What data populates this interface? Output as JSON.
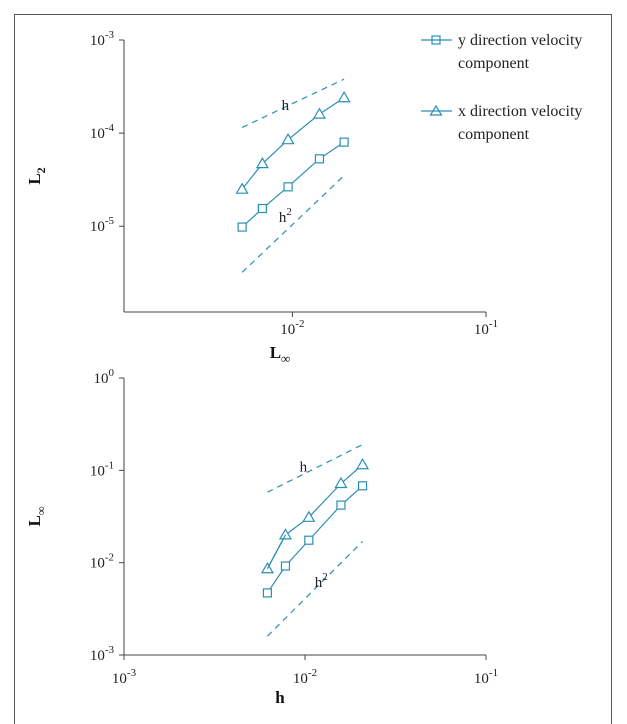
{
  "colors": {
    "series": "#2b8fb3",
    "axis": "#444444",
    "text": "#222222"
  },
  "legend": [
    {
      "marker": "square",
      "line1": "y direction velocity",
      "line2": "component"
    },
    {
      "marker": "triangle",
      "line1": "x direction velocity",
      "line2": "component"
    }
  ],
  "chart_data": [
    {
      "type": "line",
      "log_x": true,
      "log_y": true,
      "xlim": [
        0.00135,
        0.1
      ],
      "ylim": [
        1.2e-06,
        0.001
      ],
      "ylabel": "L",
      "ylabel_sub": "2",
      "xlabel": "L",
      "xlabel_sub": "∞",
      "yticks": [
        {
          "value": 0.001,
          "base": "10",
          "exp": "-3"
        },
        {
          "value": 0.0001,
          "base": "10",
          "exp": "-4"
        },
        {
          "value": 1e-05,
          "base": "10",
          "exp": "-5"
        }
      ],
      "xticks": [
        {
          "value": 0.01,
          "base": "10",
          "exp": "-2"
        },
        {
          "value": 0.1,
          "base": "10",
          "exp": "-1"
        }
      ],
      "series": [
        {
          "marker": "triangle",
          "x": [
            0.0055,
            0.007,
            0.0095,
            0.0138,
            0.0185
          ],
          "y": [
            2.5e-05,
            4.7e-05,
            8.5e-05,
            0.00016,
            0.00024
          ]
        },
        {
          "marker": "square",
          "x": [
            0.0055,
            0.007,
            0.0095,
            0.0138,
            0.0185
          ],
          "y": [
            9.8e-06,
            1.55e-05,
            2.65e-05,
            5.3e-05,
            8e-05
          ]
        }
      ],
      "reference_lines": [
        {
          "label": "h",
          "exp": "",
          "x": [
            0.0055,
            0.0185
          ],
          "y": [
            0.000115,
            0.00038
          ],
          "label_at": [
            0.0092,
            0.0002
          ]
        },
        {
          "label": "h",
          "exp": "2",
          "x": [
            0.0055,
            0.0185
          ],
          "y": [
            3.2e-06,
            3.5e-05
          ],
          "label_at": [
            0.0092,
            1.25e-05
          ]
        }
      ]
    },
    {
      "type": "line",
      "log_x": true,
      "log_y": true,
      "xlim": [
        0.001,
        0.1
      ],
      "ylim": [
        0.001,
        1
      ],
      "ylabel": "L",
      "ylabel_sub": "∞",
      "xlabel": "h",
      "xlabel_sub": "",
      "yticks": [
        {
          "value": 1,
          "base": "10",
          "exp": "0"
        },
        {
          "value": 0.1,
          "base": "10",
          "exp": "-1"
        },
        {
          "value": 0.01,
          "base": "10",
          "exp": "-2"
        },
        {
          "value": 0.001,
          "base": "10",
          "exp": "-3"
        }
      ],
      "xticks": [
        {
          "value": 0.001,
          "base": "10",
          "exp": "-3"
        },
        {
          "value": 0.01,
          "base": "10",
          "exp": "-2"
        },
        {
          "value": 0.1,
          "base": "10",
          "exp": "-1"
        }
      ],
      "series": [
        {
          "marker": "triangle",
          "x": [
            0.0062,
            0.0078,
            0.0105,
            0.0158,
            0.0208
          ],
          "y": [
            0.0086,
            0.02,
            0.031,
            0.072,
            0.115
          ]
        },
        {
          "marker": "square",
          "x": [
            0.0062,
            0.0078,
            0.0105,
            0.0158,
            0.0208
          ],
          "y": [
            0.0047,
            0.0092,
            0.0175,
            0.042,
            0.068
          ]
        },
        {
          "marker": "none",
          "x": [
            0.0062,
            0.0078
          ],
          "y": [
            0.0086,
            0.02
          ]
        }
      ],
      "reference_lines": [
        {
          "label": "h",
          "exp": "",
          "x": [
            0.0062,
            0.0208
          ],
          "y": [
            0.058,
            0.19
          ],
          "label_at": [
            0.0098,
            0.11
          ]
        },
        {
          "label": "h",
          "exp": "2",
          "x": [
            0.0062,
            0.0208
          ],
          "y": [
            0.0016,
            0.017
          ],
          "label_at": [
            0.0123,
            0.0062
          ]
        }
      ]
    }
  ]
}
